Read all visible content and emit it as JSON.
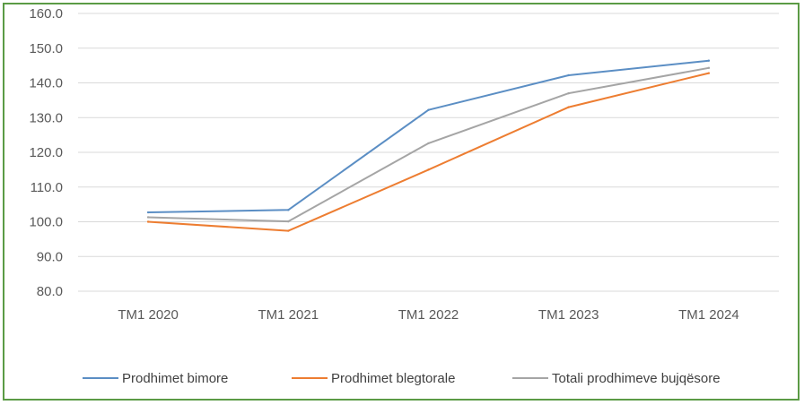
{
  "chart_data": {
    "type": "line",
    "title": "",
    "xlabel": "",
    "ylabel": "",
    "ylim": [
      80,
      160
    ],
    "yticks": [
      80,
      90,
      100,
      110,
      120,
      130,
      140,
      150,
      160
    ],
    "ytick_labels": [
      "80.0",
      "90.0",
      "100.0",
      "110.0",
      "120.0",
      "130.0",
      "140.0",
      "150.0",
      "160.0"
    ],
    "categories": [
      "TM1 2020",
      "TM1 2021",
      "TM1 2022",
      "TM1 2023",
      "TM1 2024"
    ],
    "grid": true,
    "legend_position": "bottom",
    "series": [
      {
        "name": "Prodhimet bimore",
        "color": "#5b8ec4",
        "values": [
          102.7,
          103.4,
          132.2,
          142.2,
          146.4
        ]
      },
      {
        "name": "Prodhimet blegtorale",
        "color": "#ed7d31",
        "values": [
          100.0,
          97.4,
          115.0,
          133.0,
          142.8
        ]
      },
      {
        "name": "Totali prodhimeve bujqësore",
        "color": "#a5a5a5",
        "values": [
          101.3,
          100.1,
          122.6,
          137.0,
          144.3
        ]
      }
    ]
  }
}
